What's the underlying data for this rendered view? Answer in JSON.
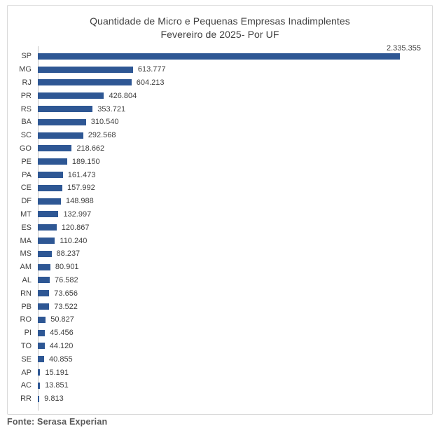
{
  "title": {
    "line1": "Quantidade de Micro e Pequenas Empresas Inadimplentes",
    "line2": "Fevereiro de 2025- Por UF"
  },
  "source": {
    "label": "Fonte: Serasa Experian"
  },
  "colors": {
    "bar": "#2E5794",
    "axis_line": "#C6C6C6",
    "frame_border": "#D9D9D9",
    "text": "#404040",
    "source_text": "#595959",
    "background": "#FFFFFF"
  },
  "chart_data": {
    "type": "bar",
    "orientation": "horizontal",
    "title": "Quantidade de Micro e Pequenas Empresas Inadimplentes Fevereiro de 2025- Por UF",
    "xlabel": "",
    "ylabel": "UF",
    "xlim": [
      0,
      2335355
    ],
    "grid": false,
    "legend": false,
    "value_labels_visible": true,
    "categories": [
      "SP",
      "MG",
      "RJ",
      "PR",
      "RS",
      "BA",
      "SC",
      "GO",
      "PE",
      "PA",
      "CE",
      "DF",
      "MT",
      "ES",
      "MA",
      "MS",
      "AM",
      "AL",
      "RN",
      "PB",
      "RO",
      "PI",
      "TO",
      "SE",
      "AP",
      "AC",
      "RR"
    ],
    "values": [
      2335355,
      613777,
      604213,
      426804,
      353721,
      310540,
      292568,
      218662,
      189150,
      161473,
      157992,
      148988,
      132997,
      120867,
      110240,
      88237,
      80901,
      76582,
      73656,
      73522,
      50827,
      45456,
      44120,
      40855,
      15191,
      13851,
      9813
    ],
    "value_labels": [
      "2.335.355",
      "613.777",
      "604.213",
      "426.804",
      "353.721",
      "310.540",
      "292.568",
      "218.662",
      "189.150",
      "161.473",
      "157.992",
      "148.988",
      "132.997",
      "120.867",
      "110.240",
      "88.237",
      "80.901",
      "76.582",
      "73.656",
      "73.522",
      "50.827",
      "45.456",
      "44.120",
      "40.855",
      "15.191",
      "13.851",
      "9.813"
    ]
  }
}
